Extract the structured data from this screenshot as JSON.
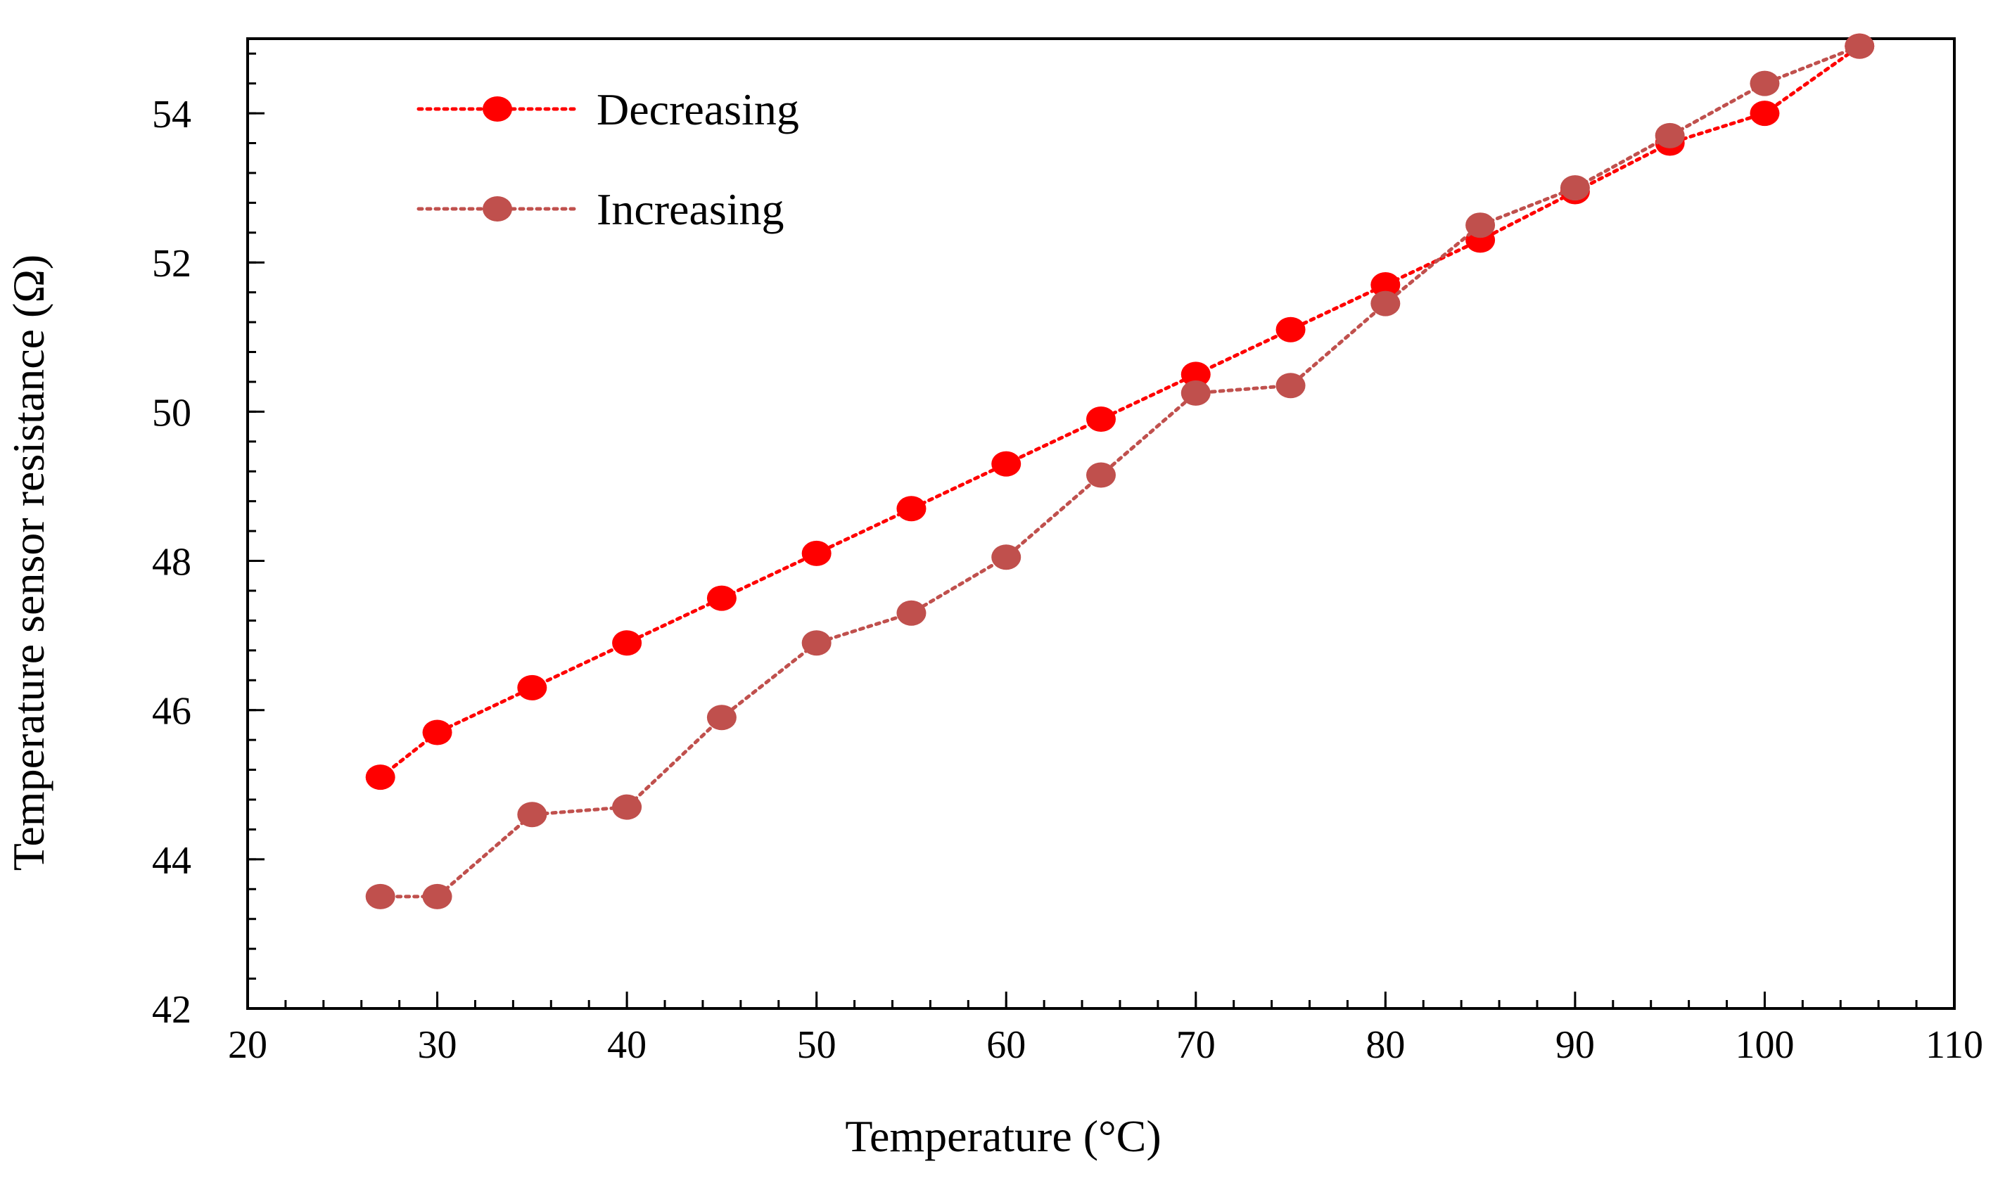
{
  "chart_data": {
    "type": "line",
    "title": "",
    "xlabel": "Temperature (°C)",
    "ylabel": "Temperature sensor resistance (Ω)",
    "xlim": [
      20,
      110
    ],
    "ylim": [
      42,
      55
    ],
    "xticks": [
      20,
      30,
      40,
      50,
      60,
      70,
      80,
      90,
      100,
      110
    ],
    "yticks": [
      42,
      44,
      46,
      48,
      50,
      52,
      54
    ],
    "x_minor_step": 2,
    "y_minor_step": 0.4,
    "grid": false,
    "legend_position": "top-left",
    "series": [
      {
        "name": "Decreasing",
        "color": "#ff0000",
        "line_style": "dotted",
        "x": [
          27,
          30,
          35,
          40,
          45,
          50,
          55,
          60,
          65,
          70,
          75,
          80,
          85,
          90,
          95,
          100,
          105
        ],
        "values": [
          45.1,
          45.7,
          46.3,
          46.9,
          47.5,
          48.1,
          48.7,
          49.3,
          49.9,
          50.5,
          51.1,
          51.7,
          52.3,
          52.95,
          53.6,
          54.0,
          54.9
        ]
      },
      {
        "name": "Increasing",
        "color": "#c0504d",
        "line_style": "dotted",
        "x": [
          27,
          30,
          35,
          40,
          45,
          50,
          55,
          60,
          65,
          70,
          75,
          80,
          85,
          90,
          95,
          100,
          105
        ],
        "values": [
          43.5,
          43.5,
          44.6,
          44.7,
          45.9,
          46.9,
          47.3,
          48.05,
          49.15,
          50.25,
          50.35,
          51.45,
          52.5,
          53.0,
          53.7,
          54.4,
          54.9
        ]
      }
    ]
  }
}
